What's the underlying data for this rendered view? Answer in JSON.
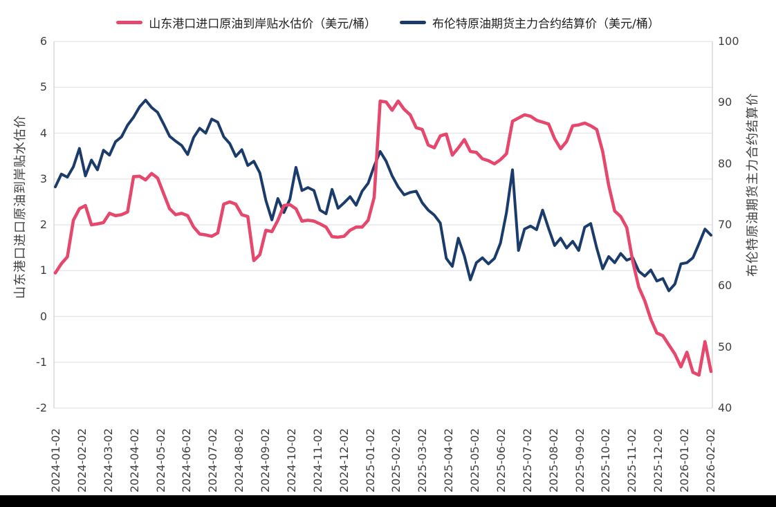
{
  "page": {
    "background": "#ffffff",
    "bottom_bar_color": "#000000"
  },
  "chart_data": {
    "type": "line",
    "title": "",
    "grid": "horizontal",
    "legend_position": "top-center",
    "axes": {
      "left": {
        "title": "山东港口进口原油到岸贴水估价",
        "ticks": [
          "6",
          "5",
          "4",
          "3",
          "2",
          "1",
          "0",
          "-1",
          "-2"
        ],
        "tick_values": [
          6,
          5,
          4,
          3,
          2,
          1,
          0,
          -1,
          -2
        ],
        "range": [
          -2,
          6
        ]
      },
      "right": {
        "title": "布伦特原油期货主力合约结算价",
        "ticks": [
          "100",
          "90",
          "80",
          "70",
          "60",
          "50",
          "40"
        ],
        "tick_values": [
          100,
          90,
          80,
          70,
          60,
          50,
          40
        ],
        "range": [
          40,
          100
        ]
      },
      "x": {
        "tick_labels": [
          "2024-01-02",
          "2024-02-02",
          "2024-03-02",
          "2024-04-02",
          "2024-05-02",
          "2024-06-02",
          "2024-07-02",
          "2024-08-02",
          "2024-09-02",
          "2024-10-02",
          "2024-11-02",
          "2024-12-02",
          "2025-01-02",
          "2025-02-02",
          "2025-03-02",
          "2025-04-02",
          "2025-05-02",
          "2025-06-02",
          "2025-07-02",
          "2025-08-02",
          "2025-09-02",
          "2025-10-02",
          "2025-11-02",
          "2025-12-02",
          "2026-01-02",
          "2026-02-02"
        ]
      }
    },
    "sampling": {
      "start_date": "2024-01-02",
      "step_days": 7,
      "points": 110
    },
    "series": [
      {
        "name": "山东港口进口原油到岸贴水估价（美元/桶）",
        "axis": "left",
        "color": "#e5476d",
        "values": [
          0.95,
          1.15,
          1.3,
          2.1,
          2.35,
          2.42,
          2.0,
          2.02,
          2.05,
          2.25,
          2.2,
          2.22,
          2.28,
          3.05,
          3.06,
          2.98,
          3.12,
          3.02,
          2.68,
          2.35,
          2.22,
          2.25,
          2.2,
          1.95,
          1.8,
          1.78,
          1.75,
          1.82,
          2.45,
          2.5,
          2.45,
          2.22,
          2.18,
          1.22,
          1.35,
          1.88,
          1.85,
          2.1,
          2.42,
          2.44,
          2.35,
          2.08,
          2.1,
          2.08,
          2.02,
          1.95,
          1.74,
          1.73,
          1.75,
          1.88,
          1.95,
          1.95,
          2.1,
          2.6,
          4.7,
          4.68,
          4.5,
          4.7,
          4.52,
          4.4,
          4.12,
          4.08,
          3.74,
          3.68,
          3.94,
          3.98,
          3.52,
          3.68,
          3.86,
          3.6,
          3.58,
          3.44,
          3.4,
          3.33,
          3.42,
          3.55,
          4.26,
          4.33,
          4.4,
          4.37,
          4.28,
          4.24,
          4.2,
          3.88,
          3.66,
          3.82,
          4.16,
          4.18,
          4.22,
          4.16,
          4.08,
          3.6,
          2.86,
          2.3,
          2.18,
          1.94,
          1.2,
          0.64,
          0.34,
          -0.06,
          -0.36,
          -0.42,
          -0.62,
          -0.82,
          -1.1,
          -0.78,
          -1.22,
          -1.28,
          -0.55,
          -1.2
        ]
      },
      {
        "name": "布伦特原油期货主力合约结算价（美元/桶）",
        "axis": "right",
        "color": "#1b3c6a",
        "values": [
          76.2,
          78.3,
          77.8,
          79.5,
          82.5,
          78.0,
          80.6,
          79.0,
          82.2,
          81.4,
          83.6,
          84.4,
          86.3,
          87.6,
          89.3,
          90.4,
          89.2,
          88.4,
          86.5,
          84.5,
          83.7,
          83.0,
          81.5,
          84.3,
          85.8,
          85.0,
          87.3,
          86.8,
          84.4,
          83.3,
          81.2,
          82.3,
          79.7,
          80.4,
          78.5,
          74.0,
          70.8,
          74.3,
          72.0,
          74.2,
          79.4,
          75.6,
          76.1,
          75.6,
          72.4,
          71.8,
          75.8,
          72.7,
          73.6,
          74.6,
          73.2,
          75.5,
          76.8,
          79.6,
          82.0,
          80.4,
          78.0,
          76.2,
          74.9,
          75.3,
          75.5,
          73.6,
          72.4,
          71.6,
          70.3,
          64.5,
          63.2,
          67.8,
          64.9,
          61.0,
          63.8,
          64.6,
          63.6,
          64.5,
          67.0,
          72.0,
          79.0,
          65.8,
          69.3,
          69.8,
          69.2,
          72.4,
          69.4,
          66.6,
          67.8,
          66.2,
          67.3,
          65.8,
          69.6,
          70.2,
          66.2,
          62.8,
          64.8,
          63.8,
          65.3,
          64.2,
          64.6,
          62.4,
          61.6,
          62.6,
          60.8,
          61.2,
          59.2,
          60.3,
          63.6,
          63.8,
          64.6,
          66.9,
          69.3,
          68.3
        ]
      }
    ],
    "style": {
      "grid_color": "#e4e4e4",
      "axis_border_color": "#d8d8d8",
      "tick_text_color": "#3f3f3f"
    }
  }
}
